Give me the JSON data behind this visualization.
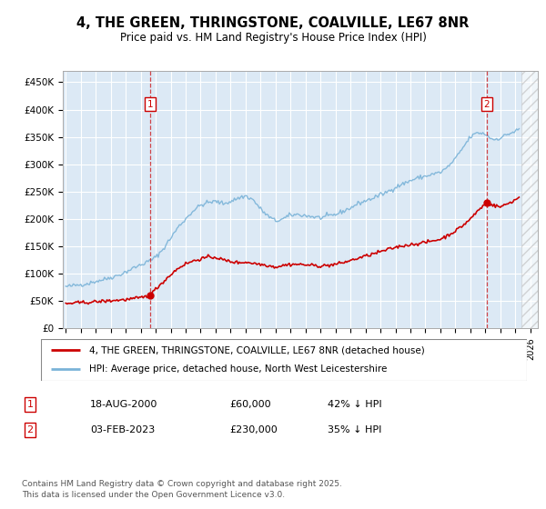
{
  "title_line1": "4, THE GREEN, THRINGSTONE, COALVILLE, LE67 8NR",
  "title_line2": "Price paid vs. HM Land Registry's House Price Index (HPI)",
  "ylabel_ticks": [
    "£0",
    "£50K",
    "£100K",
    "£150K",
    "£200K",
    "£250K",
    "£300K",
    "£350K",
    "£400K",
    "£450K"
  ],
  "ytick_values": [
    0,
    50000,
    100000,
    150000,
    200000,
    250000,
    300000,
    350000,
    400000,
    450000
  ],
  "ylim": [
    0,
    470000
  ],
  "xlim_start": 1994.8,
  "xlim_end": 2026.5,
  "plot_bg_color": "#dce9f5",
  "hpi_color": "#7ab3d8",
  "price_color": "#cc0000",
  "sale1_date": 2000.63,
  "sale1_price": 60000,
  "sale2_date": 2023.09,
  "sale2_price": 230000,
  "legend_line1": "4, THE GREEN, THRINGSTONE, COALVILLE, LE67 8NR (detached house)",
  "legend_line2": "HPI: Average price, detached house, North West Leicestershire",
  "annotation1_date": "18-AUG-2000",
  "annotation1_price": "£60,000",
  "annotation1_hpi": "42% ↓ HPI",
  "annotation2_date": "03-FEB-2023",
  "annotation2_price": "£230,000",
  "annotation2_hpi": "35% ↓ HPI",
  "footer": "Contains HM Land Registry data © Crown copyright and database right 2025.\nThis data is licensed under the Open Government Licence v3.0.",
  "hpi_anchors": [
    [
      1995.0,
      76000
    ],
    [
      1995.5,
      78000
    ],
    [
      1996.0,
      80000
    ],
    [
      1996.5,
      82000
    ],
    [
      1997.0,
      86000
    ],
    [
      1997.5,
      89000
    ],
    [
      1998.0,
      93000
    ],
    [
      1998.5,
      97000
    ],
    [
      1999.0,
      103000
    ],
    [
      1999.5,
      110000
    ],
    [
      2000.0,
      116000
    ],
    [
      2000.5,
      122000
    ],
    [
      2001.0,
      130000
    ],
    [
      2001.5,
      145000
    ],
    [
      2002.0,
      165000
    ],
    [
      2002.5,
      185000
    ],
    [
      2003.0,
      200000
    ],
    [
      2003.5,
      215000
    ],
    [
      2004.0,
      225000
    ],
    [
      2004.5,
      230000
    ],
    [
      2005.0,
      232000
    ],
    [
      2005.5,
      228000
    ],
    [
      2006.0,
      232000
    ],
    [
      2006.5,
      238000
    ],
    [
      2007.0,
      242000
    ],
    [
      2007.5,
      235000
    ],
    [
      2008.0,
      218000
    ],
    [
      2008.5,
      205000
    ],
    [
      2009.0,
      196000
    ],
    [
      2009.5,
      200000
    ],
    [
      2010.0,
      207000
    ],
    [
      2010.5,
      208000
    ],
    [
      2011.0,
      206000
    ],
    [
      2011.5,
      204000
    ],
    [
      2012.0,
      202000
    ],
    [
      2012.5,
      205000
    ],
    [
      2013.0,
      208000
    ],
    [
      2013.5,
      214000
    ],
    [
      2014.0,
      220000
    ],
    [
      2014.5,
      228000
    ],
    [
      2015.0,
      233000
    ],
    [
      2015.5,
      238000
    ],
    [
      2016.0,
      244000
    ],
    [
      2016.5,
      250000
    ],
    [
      2017.0,
      258000
    ],
    [
      2017.5,
      264000
    ],
    [
      2018.0,
      270000
    ],
    [
      2018.5,
      275000
    ],
    [
      2019.0,
      278000
    ],
    [
      2019.5,
      282000
    ],
    [
      2020.0,
      285000
    ],
    [
      2020.5,
      295000
    ],
    [
      2021.0,
      310000
    ],
    [
      2021.5,
      330000
    ],
    [
      2022.0,
      350000
    ],
    [
      2022.5,
      358000
    ],
    [
      2023.0,
      355000
    ],
    [
      2023.5,
      345000
    ],
    [
      2024.0,
      348000
    ],
    [
      2024.5,
      355000
    ],
    [
      2025.0,
      360000
    ],
    [
      2025.3,
      365000
    ]
  ],
  "price_anchors": [
    [
      1995.0,
      45000
    ],
    [
      1995.5,
      46000
    ],
    [
      1996.0,
      47000
    ],
    [
      1996.5,
      47500
    ],
    [
      1997.0,
      48500
    ],
    [
      1997.5,
      49500
    ],
    [
      1998.0,
      50500
    ],
    [
      1998.5,
      51500
    ],
    [
      1999.0,
      52500
    ],
    [
      1999.5,
      54000
    ],
    [
      2000.0,
      56000
    ],
    [
      2000.63,
      60000
    ],
    [
      2001.0,
      72000
    ],
    [
      2001.5,
      85000
    ],
    [
      2002.0,
      98000
    ],
    [
      2002.5,
      110000
    ],
    [
      2003.0,
      118000
    ],
    [
      2003.5,
      123000
    ],
    [
      2004.0,
      127000
    ],
    [
      2004.5,
      130000
    ],
    [
      2005.0,
      130000
    ],
    [
      2005.5,
      125000
    ],
    [
      2006.0,
      122000
    ],
    [
      2006.5,
      120000
    ],
    [
      2007.0,
      121000
    ],
    [
      2007.5,
      119000
    ],
    [
      2008.0,
      117000
    ],
    [
      2008.5,
      115000
    ],
    [
      2009.0,
      112000
    ],
    [
      2009.5,
      115000
    ],
    [
      2010.0,
      117000
    ],
    [
      2010.5,
      117000
    ],
    [
      2011.0,
      116000
    ],
    [
      2011.5,
      115000
    ],
    [
      2012.0,
      114000
    ],
    [
      2012.5,
      115000
    ],
    [
      2013.0,
      117000
    ],
    [
      2013.5,
      120000
    ],
    [
      2014.0,
      124000
    ],
    [
      2014.5,
      128000
    ],
    [
      2015.0,
      132000
    ],
    [
      2015.5,
      136000
    ],
    [
      2016.0,
      140000
    ],
    [
      2016.5,
      144000
    ],
    [
      2017.0,
      148000
    ],
    [
      2017.5,
      151000
    ],
    [
      2018.0,
      153000
    ],
    [
      2018.5,
      155000
    ],
    [
      2019.0,
      157000
    ],
    [
      2019.5,
      160000
    ],
    [
      2020.0,
      163000
    ],
    [
      2020.5,
      170000
    ],
    [
      2021.0,
      178000
    ],
    [
      2021.5,
      188000
    ],
    [
      2022.0,
      200000
    ],
    [
      2022.5,
      215000
    ],
    [
      2023.09,
      230000
    ],
    [
      2023.5,
      225000
    ],
    [
      2024.0,
      222000
    ],
    [
      2024.5,
      228000
    ],
    [
      2025.0,
      235000
    ],
    [
      2025.3,
      240000
    ]
  ]
}
